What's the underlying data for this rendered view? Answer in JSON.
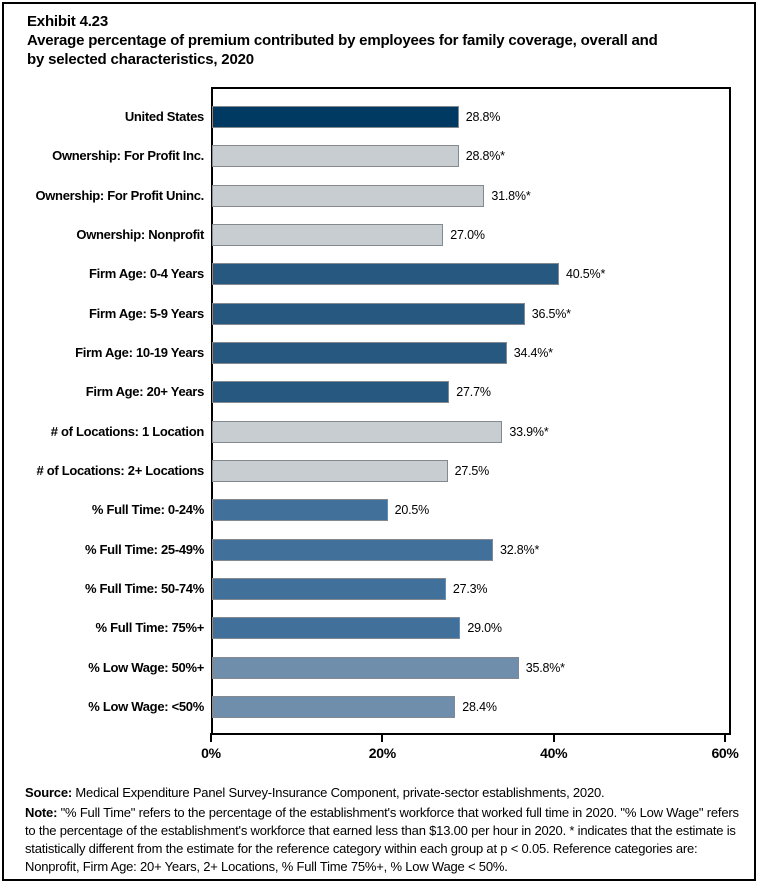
{
  "title": {
    "exhibit": "Exhibit 4.23",
    "line1": "Average percentage of premium contributed by employees for family coverage, overall and",
    "line2": "by selected characteristics, 2020"
  },
  "chart_data": {
    "type": "bar",
    "orientation": "horizontal",
    "title": "Exhibit 4.23 Average percentage of premium contributed by employees for family coverage, overall and by selected characteristics, 2020",
    "categories": [
      "United States",
      "Ownership: For Profit Inc.",
      "Ownership: For Profit Uninc.",
      "Ownership: Nonprofit",
      "Firm Age: 0-4 Years",
      "Firm Age: 5-9 Years",
      "Firm Age: 10-19 Years",
      "Firm Age: 20+ Years",
      "# of Locations: 1 Location",
      "# of Locations: 2+ Locations",
      "% Full Time: 0-24%",
      "% Full Time: 25-49%",
      "% Full Time: 50-74%",
      "% Full Time: 75%+",
      "% Low Wage: 50%+",
      "% Low Wage: <50%"
    ],
    "values": [
      28.8,
      28.8,
      31.8,
      27.0,
      40.5,
      36.5,
      34.4,
      27.7,
      33.9,
      27.5,
      20.5,
      32.8,
      27.3,
      29.0,
      35.8,
      28.4
    ],
    "value_labels": [
      "28.8%",
      "28.8%*",
      "31.8%*",
      "27.0%",
      "40.5%*",
      "36.5%*",
      "34.4%*",
      "27.7%",
      "33.9%*",
      "27.5%",
      "20.5%",
      "32.8%*",
      "27.3%",
      "29.0%",
      "35.8%*",
      "28.4%"
    ],
    "color_keys": [
      "navy",
      "gray",
      "gray",
      "gray",
      "blue_dark",
      "blue_dark",
      "blue_dark",
      "blue_dark",
      "gray",
      "gray",
      "blue_mid",
      "blue_mid",
      "blue_mid",
      "blue_mid",
      "blue_light",
      "blue_light"
    ],
    "palette": {
      "navy": "#003A63",
      "gray": "#C8CDD2",
      "blue_dark": "#27587F",
      "blue_mid": "#41709A",
      "blue_light": "#6E8EAC",
      "bar_border": "#84898F"
    },
    "xlim": [
      0,
      60.7
    ],
    "x_tick_values": [
      0,
      20,
      40,
      60
    ],
    "x_tick_labels": [
      "0%",
      "20%",
      "40%",
      "60%"
    ],
    "grid": "off",
    "legend": "none"
  },
  "footer": {
    "source_label": "Source:",
    "source_text": " Medical Expenditure Panel Survey-Insurance Component, private-sector establishments, 2020.",
    "note_label": "Note:",
    "note_text": " \"% Full Time\" refers to the percentage of the establishment's workforce that worked full time in 2020. \"% Low Wage\" refers to the percentage of the establishment's workforce that earned less than $13.00 per hour in 2020. * indicates that the estimate is statistically different from the estimate for the reference category within each group at p < 0.05.  Reference categories are: Nonprofit, Firm Age: 20+ Years, 2+ Locations, % Full Time 75%+, % Low Wage < 50%."
  }
}
